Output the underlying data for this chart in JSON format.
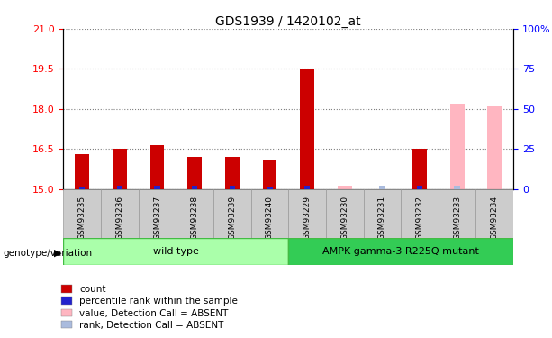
{
  "title": "GDS1939 / 1420102_at",
  "samples": [
    "GSM93235",
    "GSM93236",
    "GSM93237",
    "GSM93238",
    "GSM93239",
    "GSM93240",
    "GSM93229",
    "GSM93230",
    "GSM93231",
    "GSM93232",
    "GSM93233",
    "GSM93234"
  ],
  "groups": [
    "wild type",
    "wild type",
    "wild type",
    "wild type",
    "wild type",
    "wild type",
    "AMPK gamma-3 R225Q mutant",
    "AMPK gamma-3 R225Q mutant",
    "AMPK gamma-3 R225Q mutant",
    "AMPK gamma-3 R225Q mutant",
    "AMPK gamma-3 R225Q mutant",
    "AMPK gamma-3 R225Q mutant"
  ],
  "red_values": [
    16.3,
    16.5,
    16.65,
    16.2,
    16.2,
    16.1,
    19.5,
    0,
    0,
    16.5,
    0,
    0
  ],
  "blue_values": [
    1.5,
    2.2,
    2.5,
    2.0,
    2.0,
    1.5,
    2.2,
    0,
    2.5,
    2.0,
    0,
    2.5
  ],
  "absent_red": [
    0,
    0,
    0,
    0,
    0,
    0,
    0,
    15.15,
    0,
    0,
    18.2,
    18.1
  ],
  "absent_blue": [
    0,
    0,
    0,
    0,
    0,
    0,
    0,
    0,
    2.5,
    0,
    2.0,
    0
  ],
  "is_absent": [
    false,
    false,
    false,
    false,
    false,
    false,
    false,
    true,
    true,
    false,
    true,
    true
  ],
  "ylim_left": [
    15,
    21
  ],
  "ylim_right": [
    0,
    100
  ],
  "yticks_left": [
    15,
    16.5,
    18,
    19.5,
    21
  ],
  "yticks_right": [
    0,
    25,
    50,
    75,
    100
  ],
  "wt_count": 6,
  "mutant_count": 6,
  "baseline": 15,
  "color_red": "#CC0000",
  "color_blue": "#2222CC",
  "color_pink": "#FFB6C1",
  "color_lightblue": "#AABBDD",
  "legend_items": [
    "count",
    "percentile rank within the sample",
    "value, Detection Call = ABSENT",
    "rank, Detection Call = ABSENT"
  ],
  "legend_colors": [
    "#CC0000",
    "#2222CC",
    "#FFB6C1",
    "#AABBDD"
  ]
}
